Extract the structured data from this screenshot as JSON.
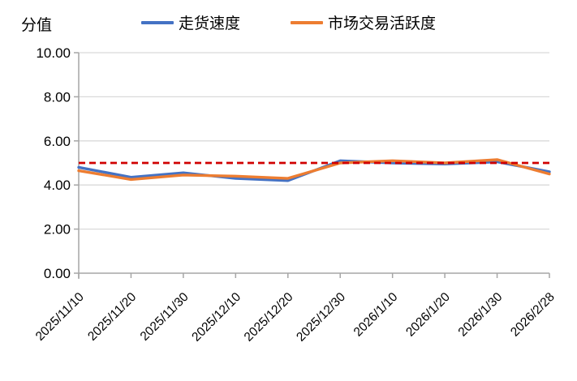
{
  "chart_data": {
    "type": "line",
    "title": "",
    "ylabel": "分值",
    "xlabel": "",
    "legend_position": "top",
    "grid": true,
    "categories": [
      "2025/11/10",
      "2025/11/20",
      "2025/11/30",
      "2025/12/10",
      "2025/12/20",
      "2025/12/30",
      "2026/1/10",
      "2026/1/20",
      "2026/1/30",
      "2026/2/28"
    ],
    "series": [
      {
        "name": "走货速度",
        "color": "#4472C4",
        "values": [
          4.8,
          4.35,
          4.55,
          4.3,
          4.2,
          5.1,
          5.0,
          4.95,
          5.05,
          4.6
        ]
      },
      {
        "name": "市场交易活跃度",
        "color": "#ED7D31",
        "values": [
          4.65,
          4.25,
          4.45,
          4.4,
          4.3,
          5.0,
          5.1,
          5.0,
          5.15,
          4.5
        ]
      }
    ],
    "reference_line": {
      "value": 5.0,
      "color": "#D00000",
      "style": "dashed"
    },
    "y_axis": {
      "min": 0,
      "max": 10,
      "step": 2,
      "labels": [
        "0.00",
        "2.00",
        "4.00",
        "6.00",
        "8.00",
        "10.00"
      ]
    },
    "colors": {
      "axis": "#A6A6A6",
      "gridline": "#D9D9D9",
      "tick_text": "#000000"
    }
  }
}
